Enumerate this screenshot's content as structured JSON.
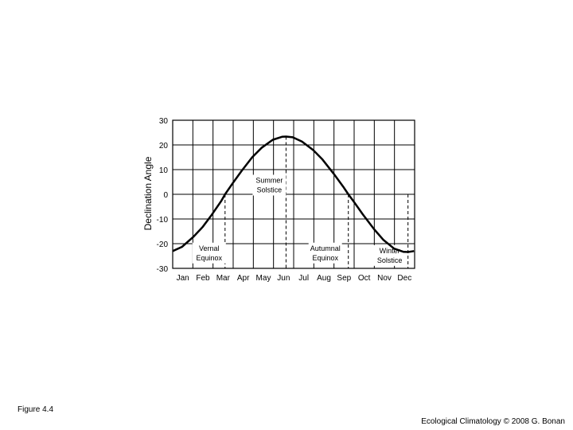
{
  "chart_data": {
    "type": "line",
    "ylabel": "Declination Angle",
    "ylim": [
      -30,
      30
    ],
    "yticks": [
      30,
      20,
      10,
      0,
      -10,
      -20,
      -30
    ],
    "months": [
      "Jan",
      "Feb",
      "Mar",
      "Apr",
      "May",
      "Jun",
      "Jul",
      "Aug",
      "Sep",
      "Oct",
      "Nov",
      "Dec"
    ],
    "grid": true,
    "series": [
      {
        "x": [
          1,
          15,
          32,
          46,
          60,
          74,
          80,
          91,
          105,
          121,
          135,
          152,
          166,
          172,
          182,
          196,
          213,
          227,
          244,
          258,
          266,
          274,
          288,
          305,
          319,
          335,
          349,
          356,
          365
        ],
        "y": [
          -23.0,
          -21.3,
          -17.3,
          -13.3,
          -8.3,
          -2.8,
          0.0,
          4.3,
          9.5,
          15.0,
          18.8,
          22.1,
          23.3,
          23.4,
          23.1,
          21.4,
          17.9,
          14.1,
          8.3,
          3.2,
          0.0,
          -2.9,
          -8.2,
          -14.2,
          -18.5,
          -22.0,
          -23.3,
          -23.4,
          -23.0
        ]
      }
    ],
    "events": [
      {
        "label1": "Vernal",
        "label2": "Equinox",
        "day": 80
      },
      {
        "label1": "Summer",
        "label2": "Solstice",
        "day": 172
      },
      {
        "label1": "Autumnal",
        "label2": "Equinox",
        "day": 266
      },
      {
        "label1": "Winter",
        "label2": "Solstice",
        "day": 356
      }
    ]
  },
  "footer": {
    "figure_label": "Figure 4.4",
    "credit": "Ecological Climatology © 2008 G. Bonan"
  }
}
